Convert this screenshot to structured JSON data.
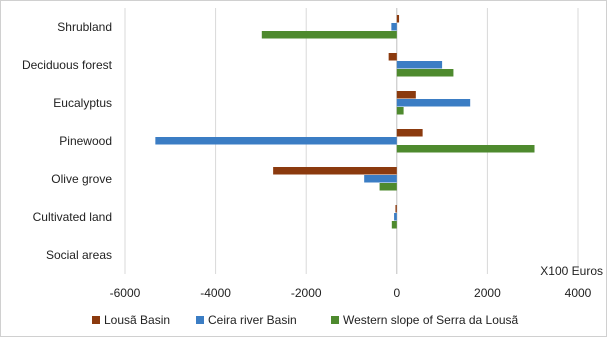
{
  "chart_data": {
    "type": "bar",
    "orientation": "horizontal",
    "categories": [
      "Shrubland",
      "Deciduous forest",
      "Eucalyptus",
      "Pinewood",
      "Olive grove",
      "Cultivated land",
      "Social areas"
    ],
    "series": [
      {
        "name": "Lousã Basin",
        "color": "#8B3A0E",
        "values": [
          50,
          -180,
          420,
          570,
          -2730,
          -30,
          0
        ]
      },
      {
        "name": "Ceira river Basin",
        "color": "#3B7DC4",
        "values": [
          -120,
          1000,
          1620,
          -5330,
          -720,
          -60,
          0
        ]
      },
      {
        "name": "Western slope of Serra da Lousã",
        "color": "#4E8A2E",
        "values": [
          -2980,
          1250,
          150,
          3040,
          -380,
          -110,
          0
        ]
      }
    ],
    "xlim": [
      -6000,
      4000
    ],
    "xticks": [
      "-6000",
      "-4000",
      "-2000",
      "0",
      "2000",
      "4000"
    ],
    "unit_label": "X100 Euros",
    "grid": "vertical",
    "legend_position": "bottom"
  }
}
